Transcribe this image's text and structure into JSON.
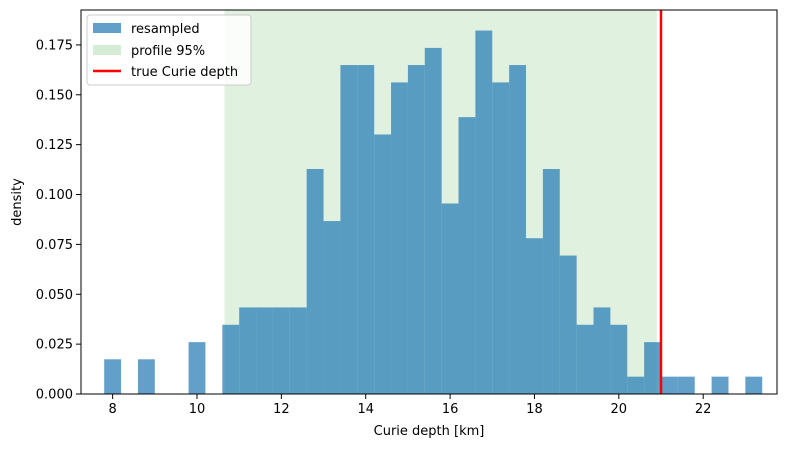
{
  "chart_data": {
    "type": "bar",
    "xlabel": "Curie depth [km]",
    "ylabel": "density",
    "xlim": [
      7.25,
      23.75
    ],
    "ylim": [
      0,
      0.1925
    ],
    "xticks": [
      8,
      10,
      12,
      14,
      16,
      18,
      20,
      22
    ],
    "yticks": [
      0.0,
      0.025,
      0.05,
      0.075,
      0.1,
      0.125,
      0.15,
      0.175
    ],
    "ytick_labels": [
      "0.000",
      "0.025",
      "0.050",
      "0.075",
      "0.100",
      "0.125",
      "0.150",
      "0.175"
    ],
    "bin_width": 0.4,
    "series": [
      {
        "name": "resampled",
        "kind": "histogram",
        "color": "#1f77b4",
        "alpha": 0.7,
        "bins": [
          [
            7.8,
            0.0174
          ],
          [
            8.6,
            0.0174
          ],
          [
            9.8,
            0.026
          ],
          [
            10.6,
            0.0347
          ],
          [
            11.0,
            0.0434
          ],
          [
            11.4,
            0.0434
          ],
          [
            11.8,
            0.0434
          ],
          [
            12.2,
            0.0434
          ],
          [
            12.6,
            0.1128
          ],
          [
            13.0,
            0.0867
          ],
          [
            13.4,
            0.1649
          ],
          [
            13.8,
            0.1649
          ],
          [
            14.2,
            0.1301
          ],
          [
            14.6,
            0.1562
          ],
          [
            15.0,
            0.1649
          ],
          [
            15.4,
            0.1735
          ],
          [
            15.8,
            0.0955
          ],
          [
            16.2,
            0.1388
          ],
          [
            16.6,
            0.1822
          ],
          [
            17.0,
            0.1562
          ],
          [
            17.4,
            0.1649
          ],
          [
            17.8,
            0.0781
          ],
          [
            18.2,
            0.1128
          ],
          [
            18.6,
            0.0694
          ],
          [
            19.0,
            0.0347
          ],
          [
            19.4,
            0.0434
          ],
          [
            19.8,
            0.0347
          ],
          [
            20.2,
            0.0087
          ],
          [
            20.6,
            0.026
          ],
          [
            21.0,
            0.0087
          ],
          [
            21.4,
            0.0087
          ],
          [
            22.2,
            0.0087
          ],
          [
            23.0,
            0.0087
          ]
        ]
      },
      {
        "name": "profile 95%",
        "kind": "span",
        "color": "#2ca02c",
        "alpha": 0.15,
        "x0": 10.65,
        "x1": 20.9
      },
      {
        "name": "true Curie depth",
        "kind": "vline",
        "color": "#ff0000",
        "x": 21.0
      }
    ],
    "legend": "top-left",
    "grid": false
  }
}
